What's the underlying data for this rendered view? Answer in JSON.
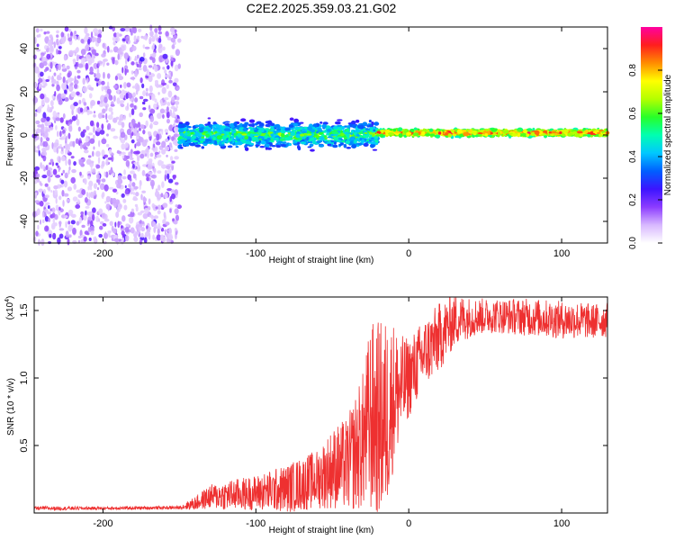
{
  "chart_data": [
    {
      "type": "heatmap",
      "title": "C2E2.2025.359.03.21.G02",
      "xlabel": "Height of straight line (km)",
      "ylabel": "Frequency (Hz)",
      "xlim": [
        -245,
        130
      ],
      "ylim": [
        -50,
        50
      ],
      "xticks": [
        -200,
        -100,
        0,
        100
      ],
      "yticks": [
        -40,
        -20,
        0,
        20,
        40
      ],
      "colorbar": {
        "label": "Normalized spectral amplitude",
        "range": [
          0,
          1
        ],
        "ticks": [
          0.0,
          0.2,
          0.4,
          0.6,
          0.8
        ],
        "tick_labels": [
          "0.0",
          "0.2",
          "0.4",
          "0.6",
          "0.8"
        ],
        "colors": [
          "#ffffff",
          "#d8b8ff",
          "#8c3cff",
          "#3c14ff",
          "#0060ff",
          "#00c8ff",
          "#00ffb0",
          "#28ff28",
          "#b4ff00",
          "#ffff00",
          "#ff8c00",
          "#ff1e1e",
          "#ff00a0"
        ]
      },
      "regions": [
        {
          "x_range": [
            -245,
            -150
          ],
          "description_value": "noise",
          "amplitude_range": [
            0.05,
            0.25
          ],
          "freq_range": [
            -50,
            50
          ]
        },
        {
          "x_range": [
            -150,
            -20
          ],
          "description_value": "signal",
          "amplitude_range": [
            0.2,
            0.7
          ],
          "freq_center": 0,
          "freq_halfwidth": 8
        },
        {
          "x_range": [
            -20,
            130
          ],
          "description_value": "tone",
          "amplitude_range": [
            0.45,
            1.0
          ],
          "freq_center": 1,
          "freq_halfwidth": 2
        }
      ]
    },
    {
      "type": "line",
      "xlabel": "Height of straight line (km)",
      "ylabel": "SNR (10 * v/v)",
      "y_multiplier": "(x10",
      "y_multiplier_exp": "4",
      "y_multiplier_close": ")",
      "xlim": [
        -245,
        130
      ],
      "ylim": [
        0,
        16000
      ],
      "xticks": [
        -200,
        -100,
        0,
        100
      ],
      "yticks": [
        5000,
        10000,
        15000
      ],
      "ytick_labels": [
        "0.5",
        "1.0",
        "1.5"
      ],
      "color": "#ee3030",
      "series": [
        {
          "name": "SNR",
          "x": [
            -245,
            -200,
            -150,
            -140,
            -130,
            -120,
            -100,
            -80,
            -60,
            -50,
            -40,
            -30,
            -25,
            -20,
            -15,
            -10,
            -5,
            0,
            10,
            20,
            30,
            40,
            50,
            60,
            80,
            100,
            110,
            120,
            130
          ],
          "y": [
            350,
            350,
            400,
            700,
            1200,
            1300,
            1500,
            1800,
            2500,
            3300,
            3600,
            5300,
            7000,
            6800,
            7000,
            8800,
            9200,
            10000,
            11800,
            13000,
            14300,
            14500,
            14600,
            14600,
            14500,
            14300,
            14300,
            14200,
            14300
          ],
          "amp": [
            150,
            120,
            120,
            500,
            900,
            1100,
            1300,
            1800,
            2200,
            3000,
            3500,
            5200,
            7200,
            7500,
            7500,
            5500,
            4000,
            3000,
            2600,
            2600,
            2000,
            1500,
            1300,
            1300,
            1400,
            1400,
            1400,
            1300,
            1300
          ]
        }
      ]
    }
  ]
}
